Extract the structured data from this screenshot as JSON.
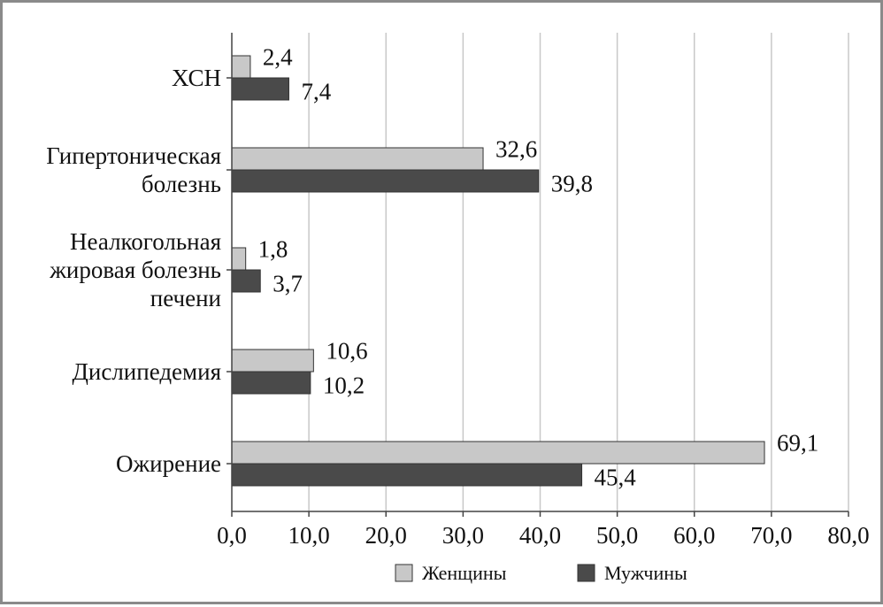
{
  "chart_data": {
    "type": "bar",
    "orientation": "horizontal",
    "categories": [
      [
        "ХСН"
      ],
      [
        "Гипертоническая",
        "болезнь"
      ],
      [
        "Неалкогольная",
        "жировая болезнь",
        "печени"
      ],
      [
        "Дислипедемия"
      ],
      [
        "Ожирение"
      ]
    ],
    "series": [
      {
        "name": "Женщины",
        "values": [
          2.4,
          32.6,
          1.8,
          10.6,
          69.1
        ],
        "labels": [
          "2,4",
          "32,6",
          "1,8",
          "10,6",
          "69,1"
        ],
        "color": "#c8c8c8"
      },
      {
        "name": "Мужчины",
        "values": [
          7.4,
          39.8,
          3.7,
          10.2,
          45.4
        ],
        "labels": [
          "7,4",
          "39,8",
          "3,7",
          "10,2",
          "45,4"
        ],
        "color": "#4a4a4a"
      }
    ],
    "xlim": [
      0,
      80
    ],
    "x_ticks": [
      0,
      10,
      20,
      30,
      40,
      50,
      60,
      70,
      80
    ],
    "x_tick_labels": [
      "0,0",
      "10,0",
      "20,0",
      "30,0",
      "40,0",
      "50,0",
      "60,0",
      "70,0",
      "80,0"
    ],
    "grid": "vertical",
    "legend": "bottom",
    "gridline_color": "#c8c8c8",
    "border_color": "#8a8a8a"
  }
}
